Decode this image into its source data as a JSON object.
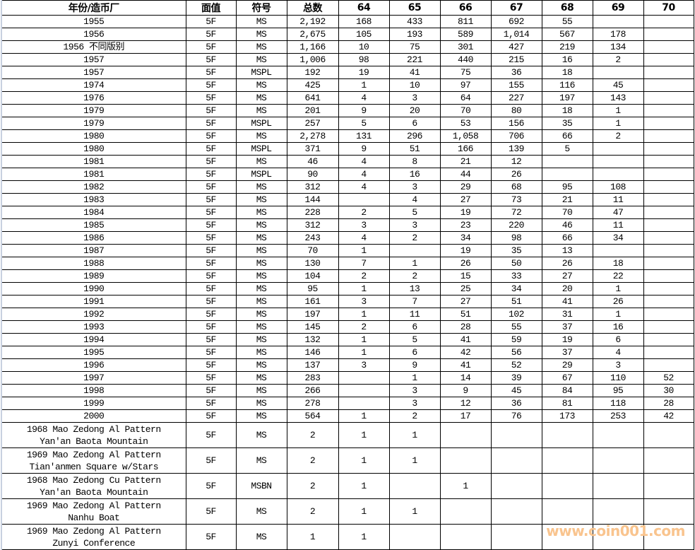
{
  "table": {
    "headers": [
      "年份/造币厂",
      "面值",
      "符号",
      "总数",
      "64",
      "65",
      "66",
      "67",
      "68",
      "69",
      "70"
    ],
    "rows": [
      [
        "1955",
        "5F",
        "MS",
        "2,192",
        "168",
        "433",
        "811",
        "692",
        "55",
        "",
        ""
      ],
      [
        "1956",
        "5F",
        "MS",
        "2,675",
        "105",
        "193",
        "589",
        "1,014",
        "567",
        "178",
        ""
      ],
      [
        "1956 不同版别",
        "5F",
        "MS",
        "1,166",
        "10",
        "75",
        "301",
        "427",
        "219",
        "134",
        ""
      ],
      [
        "1957",
        "5F",
        "MS",
        "1,006",
        "98",
        "221",
        "440",
        "215",
        "16",
        "2",
        ""
      ],
      [
        "1957",
        "5F",
        "MSPL",
        "192",
        "19",
        "41",
        "75",
        "36",
        "18",
        "",
        ""
      ],
      [
        "1974",
        "5F",
        "MS",
        "425",
        "1",
        "10",
        "97",
        "155",
        "116",
        "45",
        ""
      ],
      [
        "1976",
        "5F",
        "MS",
        "641",
        "4",
        "3",
        "64",
        "227",
        "197",
        "143",
        ""
      ],
      [
        "1979",
        "5F",
        "MS",
        "201",
        "9",
        "20",
        "70",
        "80",
        "18",
        "1",
        ""
      ],
      [
        "1979",
        "5F",
        "MSPL",
        "257",
        "5",
        "6",
        "53",
        "156",
        "35",
        "1",
        ""
      ],
      [
        "1980",
        "5F",
        "MS",
        "2,278",
        "131",
        "296",
        "1,058",
        "706",
        "66",
        "2",
        ""
      ],
      [
        "1980",
        "5F",
        "MSPL",
        "371",
        "9",
        "51",
        "166",
        "139",
        "5",
        "",
        ""
      ],
      [
        "1981",
        "5F",
        "MS",
        "46",
        "4",
        "8",
        "21",
        "12",
        "",
        "",
        ""
      ],
      [
        "1981",
        "5F",
        "MSPL",
        "90",
        "4",
        "16",
        "44",
        "26",
        "",
        "",
        ""
      ],
      [
        "1982",
        "5F",
        "MS",
        "312",
        "4",
        "3",
        "29",
        "68",
        "95",
        "108",
        ""
      ],
      [
        "1983",
        "5F",
        "MS",
        "144",
        "",
        "4",
        "27",
        "73",
        "21",
        "11",
        ""
      ],
      [
        "1984",
        "5F",
        "MS",
        "228",
        "2",
        "5",
        "19",
        "72",
        "70",
        "47",
        ""
      ],
      [
        "1985",
        "5F",
        "MS",
        "312",
        "3",
        "3",
        "23",
        "220",
        "46",
        "11",
        ""
      ],
      [
        "1986",
        "5F",
        "MS",
        "243",
        "4",
        "2",
        "34",
        "98",
        "66",
        "34",
        ""
      ],
      [
        "1987",
        "5F",
        "MS",
        "70",
        "1",
        "",
        "19",
        "35",
        "13",
        "",
        ""
      ],
      [
        "1988",
        "5F",
        "MS",
        "130",
        "7",
        "1",
        "26",
        "50",
        "26",
        "18",
        ""
      ],
      [
        "1989",
        "5F",
        "MS",
        "104",
        "2",
        "2",
        "15",
        "33",
        "27",
        "22",
        ""
      ],
      [
        "1990",
        "5F",
        "MS",
        "95",
        "1",
        "13",
        "25",
        "34",
        "20",
        "1",
        ""
      ],
      [
        "1991",
        "5F",
        "MS",
        "161",
        "3",
        "7",
        "27",
        "51",
        "41",
        "26",
        ""
      ],
      [
        "1992",
        "5F",
        "MS",
        "197",
        "1",
        "11",
        "51",
        "102",
        "31",
        "1",
        ""
      ],
      [
        "1993",
        "5F",
        "MS",
        "145",
        "2",
        "6",
        "28",
        "55",
        "37",
        "16",
        ""
      ],
      [
        "1994",
        "5F",
        "MS",
        "132",
        "1",
        "5",
        "41",
        "59",
        "19",
        "6",
        ""
      ],
      [
        "1995",
        "5F",
        "MS",
        "146",
        "1",
        "6",
        "42",
        "56",
        "37",
        "4",
        ""
      ],
      [
        "1996",
        "5F",
        "MS",
        "137",
        "3",
        "9",
        "41",
        "52",
        "29",
        "3",
        ""
      ],
      [
        "1997",
        "5F",
        "MS",
        "283",
        "",
        "1",
        "14",
        "39",
        "67",
        "110",
        "52"
      ],
      [
        "1998",
        "5F",
        "MS",
        "266",
        "",
        "3",
        "9",
        "45",
        "84",
        "95",
        "30"
      ],
      [
        "1999",
        "5F",
        "MS",
        "278",
        "",
        "3",
        "12",
        "36",
        "81",
        "118",
        "28"
      ],
      [
        "2000",
        "5F",
        "MS",
        "564",
        "1",
        "2",
        "17",
        "76",
        "173",
        "253",
        "42"
      ],
      [
        "1968 Mao Zedong Al Pattern\nYan'an Baota Mountain",
        "5F",
        "MS",
        "2",
        "1",
        "1",
        "",
        "",
        "",
        "",
        ""
      ],
      [
        "1969 Mao Zedong Al Pattern\nTian'anmen Square w/Stars",
        "5F",
        "MS",
        "2",
        "1",
        "1",
        "",
        "",
        "",
        "",
        ""
      ],
      [
        "1968 Mao Zedong Cu Pattern\nYan'an Baota Mountain",
        "5F",
        "MSBN",
        "2",
        "1",
        "",
        "1",
        "",
        "",
        "",
        ""
      ],
      [
        "1969 Mao Zedong Al Pattern\nNanhu Boat",
        "5F",
        "MS",
        "2",
        "1",
        "1",
        "",
        "",
        "",
        "",
        ""
      ],
      [
        "1969 Mao Zedong Al Pattern\nZunyi Conference",
        "5F",
        "MS",
        "1",
        "1",
        "",
        "",
        "",
        "",
        "",
        ""
      ]
    ]
  },
  "watermark": "www.coin001.com"
}
